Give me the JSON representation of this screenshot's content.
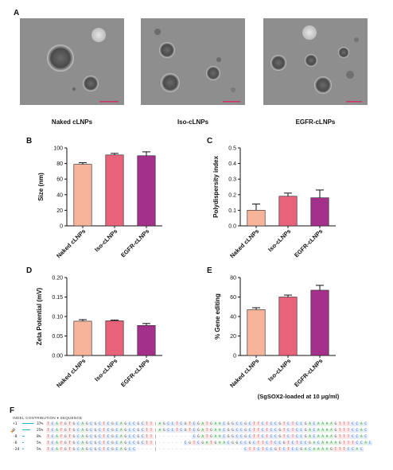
{
  "panels": {
    "A": "A",
    "B": "B",
    "C": "C",
    "D": "D",
    "E": "E",
    "F": "F"
  },
  "tem_labels": [
    "Naked cLNPs",
    "Iso-cLNPs",
    "EGFR-cLNPs"
  ],
  "colors": {
    "naked": "#f7b49b",
    "iso": "#e8627a",
    "egfr": "#a3308a",
    "tem_bg": "#8f8f8f",
    "scale_bar": "#d0336b"
  },
  "chart_data": [
    {
      "id": "B",
      "type": "bar",
      "categories": [
        "Naked cLNPs",
        "Iso-cLNPs",
        "EGFR-cLNPs"
      ],
      "values": [
        79,
        91,
        90
      ],
      "errors": [
        2,
        2,
        5
      ],
      "ylabel": "Size (nm)",
      "ylim": [
        0,
        100
      ],
      "yticks": [
        "0",
        "20",
        "40",
        "60",
        "80",
        "100"
      ],
      "tick_values": [
        0,
        20,
        40,
        60,
        80,
        100
      ]
    },
    {
      "id": "C",
      "type": "bar",
      "categories": [
        "Naked cLNPs",
        "Iso-cLNPs",
        "EGFR-cLNPs"
      ],
      "values": [
        0.1,
        0.19,
        0.18
      ],
      "errors": [
        0.04,
        0.02,
        0.05
      ],
      "ylabel": "Polydispersity index",
      "ylim": [
        0,
        0.5
      ],
      "yticks": [
        "0.0",
        "0.1",
        "0.2",
        "0.3",
        "0.4",
        "0.5"
      ],
      "tick_values": [
        0,
        0.1,
        0.2,
        0.3,
        0.4,
        0.5
      ]
    },
    {
      "id": "D",
      "type": "bar",
      "categories": [
        "Naked cLNPs",
        "Iso-cLNPs",
        "EGFR-cLNPs"
      ],
      "values": [
        0.088,
        0.089,
        0.077
      ],
      "errors": [
        0.004,
        0.002,
        0.005
      ],
      "ylabel": "Zeta Potential (mV)",
      "ylim": [
        0,
        0.2
      ],
      "yticks": [
        "0.00",
        "0.05",
        "0.10",
        "0.15",
        "0.20"
      ],
      "tick_values": [
        0,
        0.05,
        0.1,
        0.15,
        0.2
      ]
    },
    {
      "id": "E",
      "type": "bar",
      "categories": [
        "Naked cLNPs",
        "Iso-cLNPs",
        "EGFR-cLNPs"
      ],
      "values": [
        47,
        60,
        67
      ],
      "errors": [
        2,
        2,
        5
      ],
      "ylabel": "% Gene editing",
      "ylim": [
        0,
        80
      ],
      "yticks": [
        "0",
        "20",
        "40",
        "60",
        "80"
      ],
      "tick_values": [
        0,
        20,
        40,
        60,
        80
      ],
      "note": "(SgSOX2-loaded at 10 μg/ml)"
    }
  ],
  "sequence": {
    "header": "INDEL   CONTRIBUTION ▾   SEQUENCE",
    "rows": [
      {
        "indel": "+1",
        "contrib": "37%",
        "seq": "TCATGTGCAGCGCTCGCAGCCGCTT|AGCCTCGTCGATGAACGGCCGCTTCTCCGTCTCCGACAAAAGTTTCCAC"
      },
      {
        "indel": "0",
        "contrib": "25%",
        "seq": "TCATGTGCAGCGCTCGCAGCCGCTT|AGCCTCGTCGATGAACGGCCGCTTCTCCGTCTCCGACAAAAGTTTCCAC"
      },
      {
        "indel": "-8",
        "contrib": "8%",
        "seq": "TCATGTGCAGCGCTCGCAGCCGCTT|--------CGATGAACGGCCGCTTCTCCGTCTCCGACAAAAGTTTCCAC"
      },
      {
        "indel": "-6",
        "contrib": "5%",
        "seq": "TCATGTGCAGCGCTCGCAGCCGCTT|------CGTCGATGAACGGCCGCTTCTCCGTCTCCGACAAAAGTTTCCAC"
      },
      {
        "indel": "-24",
        "contrib": "5%",
        "seq": "TCATGTGCAGCGCTCGCAGCC----|--------------------CTTCTCCGTCTCCGACAAAAGTTTCCAC"
      }
    ],
    "marker": "+"
  }
}
